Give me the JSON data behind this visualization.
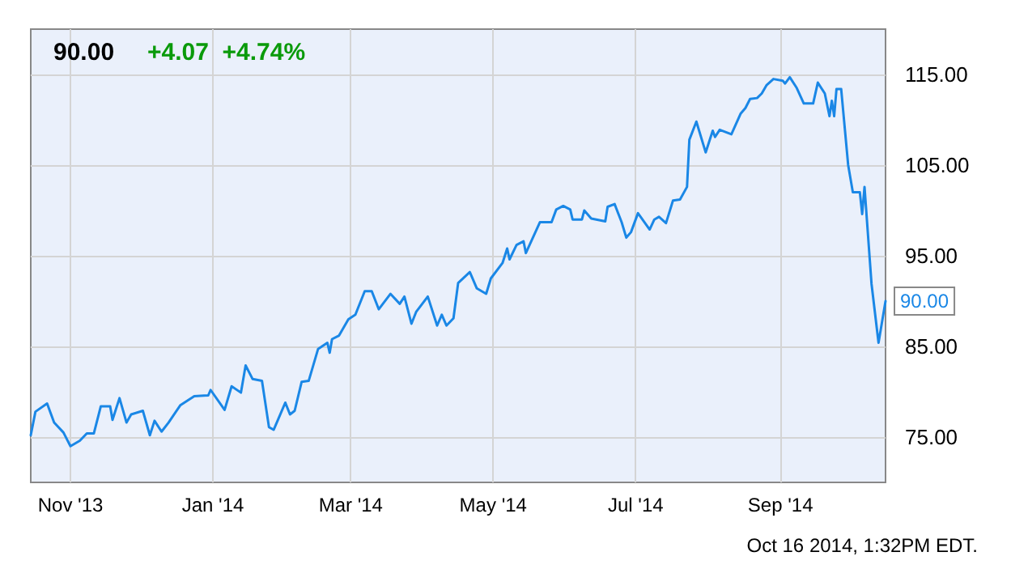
{
  "chart_data": {
    "type": "line",
    "title": "90.00",
    "subtitle": "+4.07  +4.74%",
    "annotations": [
      "Oct 16 2014, 1:32PM EDT."
    ],
    "x": [
      "2013-10-15",
      "2013-10-17",
      "2013-10-22",
      "2013-10-25",
      "2013-10-29",
      "2013-11-01",
      "2013-11-05",
      "2013-11-08",
      "2013-11-11",
      "2013-11-14",
      "2013-11-18",
      "2013-11-19",
      "2013-11-22",
      "2013-11-25",
      "2013-11-27",
      "2013-12-02",
      "2013-12-05",
      "2013-12-07",
      "2013-12-10",
      "2013-12-13",
      "2013-12-18",
      "2013-12-24",
      "2013-12-30",
      "2013-12-31",
      "2014-01-06",
      "2014-01-09",
      "2014-01-13",
      "2014-01-15",
      "2014-01-18",
      "2014-01-22",
      "2014-01-25",
      "2014-01-27",
      "2014-02-01",
      "2014-02-03",
      "2014-02-05",
      "2014-02-08",
      "2014-02-11",
      "2014-02-15",
      "2014-02-19",
      "2014-02-20",
      "2014-02-21",
      "2014-02-24",
      "2014-02-28",
      "2014-03-03",
      "2014-03-07",
      "2014-03-10",
      "2014-03-13",
      "2014-03-18",
      "2014-03-22",
      "2014-03-24",
      "2014-03-27",
      "2014-03-29",
      "2014-04-03",
      "2014-04-07",
      "2014-04-09",
      "2014-04-11",
      "2014-04-14",
      "2014-04-16",
      "2014-04-21",
      "2014-04-24",
      "2014-04-28",
      "2014-04-30",
      "2014-05-05",
      "2014-05-07",
      "2014-05-08",
      "2014-05-11",
      "2014-05-14",
      "2014-05-15",
      "2014-05-18",
      "2014-05-21",
      "2014-05-26",
      "2014-05-28",
      "2014-05-31",
      "2014-06-03",
      "2014-06-04",
      "2014-06-08",
      "2014-06-09",
      "2014-06-12",
      "2014-06-18",
      "2014-06-19",
      "2014-06-22",
      "2014-06-25",
      "2014-06-27",
      "2014-06-29",
      "2014-07-02",
      "2014-07-07",
      "2014-07-09",
      "2014-07-11",
      "2014-07-14",
      "2014-07-17",
      "2014-07-20",
      "2014-07-23",
      "2014-07-24",
      "2014-07-27",
      "2014-07-31",
      "2014-08-03",
      "2014-08-04",
      "2014-08-06",
      "2014-08-11",
      "2014-08-15",
      "2014-08-17",
      "2014-08-19",
      "2014-08-22",
      "2014-08-24",
      "2014-08-26",
      "2014-08-29",
      "2014-09-02",
      "2014-09-03",
      "2014-09-05",
      "2014-09-08",
      "2014-09-11",
      "2014-09-15",
      "2014-09-17",
      "2014-09-20",
      "2014-09-22",
      "2014-09-23",
      "2014-09-24",
      "2014-09-25",
      "2014-09-27",
      "2014-09-30",
      "2014-10-02",
      "2014-10-05",
      "2014-10-06",
      "2014-10-07",
      "2014-10-10",
      "2014-10-13",
      "2014-10-16"
    ],
    "series": [
      {
        "color": "#1a87e6",
        "values": [
          75.2,
          77.8,
          78.7,
          76.6,
          75.5,
          74.0,
          74.6,
          75.4,
          75.4,
          78.4,
          78.4,
          76.9,
          79.3,
          76.6,
          77.5,
          77.9,
          75.2,
          76.8,
          75.6,
          76.6,
          78.5,
          79.5,
          79.6,
          80.2,
          78.0,
          80.6,
          79.9,
          82.9,
          81.4,
          81.2,
          76.1,
          75.8,
          78.8,
          77.5,
          77.9,
          81.1,
          81.2,
          84.7,
          85.4,
          84.3,
          85.8,
          86.2,
          88.0,
          88.5,
          91.1,
          91.1,
          89.1,
          90.8,
          89.7,
          90.5,
          87.5,
          88.8,
          90.5,
          87.3,
          88.5,
          87.3,
          88.1,
          92.0,
          93.2,
          91.4,
          90.8,
          92.5,
          94.2,
          95.8,
          94.6,
          96.2,
          96.6,
          95.3,
          97.0,
          98.7,
          98.7,
          100.1,
          100.5,
          100.1,
          99.0,
          99.0,
          100.0,
          99.1,
          98.8,
          100.4,
          100.7,
          98.7,
          97.0,
          97.6,
          99.7,
          97.9,
          99.0,
          99.3,
          98.6,
          101.1,
          101.2,
          102.6,
          107.8,
          109.8,
          106.4,
          108.8,
          108.1,
          108.9,
          108.4,
          110.7,
          111.3,
          112.3,
          112.4,
          112.9,
          113.8,
          114.5,
          114.3,
          114.0,
          114.7,
          113.5,
          111.8,
          111.8,
          114.1,
          112.9,
          110.4,
          112.1,
          110.4,
          113.4,
          113.4,
          105.0,
          102.0,
          102.0,
          99.6,
          102.6,
          91.9,
          85.4,
          90.0
        ],
        "value_labels": [
          null,
          null,
          null,
          null,
          null,
          null,
          null,
          null,
          null,
          null,
          null,
          null,
          null,
          null,
          null,
          null,
          null,
          null,
          null,
          null,
          null,
          null,
          null,
          null,
          null,
          null,
          null,
          null,
          null,
          null,
          null,
          null,
          null,
          null,
          null,
          null,
          null,
          null,
          null,
          null,
          null,
          null,
          null,
          null,
          null,
          null,
          null,
          null,
          null,
          null,
          null,
          null,
          null,
          null,
          null,
          null,
          null,
          null,
          null,
          null,
          null,
          null,
          null,
          null,
          null,
          null,
          null,
          null,
          null,
          null,
          null,
          null,
          null,
          null,
          null,
          null,
          null,
          null,
          null,
          null,
          null,
          null,
          null,
          null,
          null,
          null,
          null,
          null,
          null,
          null,
          null,
          null,
          null,
          null,
          null,
          null,
          null,
          null,
          null,
          null,
          null,
          null,
          null,
          null,
          null,
          null,
          null,
          null,
          null,
          null,
          null,
          null,
          null,
          null,
          null,
          null,
          null,
          null,
          null,
          null,
          null,
          null,
          null,
          null,
          null,
          null,
          "90.00"
        ]
      }
    ],
    "xlim": [
      "2013-10-15",
      "2014-10-16"
    ],
    "xticks": [
      {
        "value": "2013-11-01",
        "label": "Nov '13"
      },
      {
        "value": "2014-01-01",
        "label": "Jan '14"
      },
      {
        "value": "2014-03-01",
        "label": "Mar '14"
      },
      {
        "value": "2014-05-01",
        "label": "May '14"
      },
      {
        "value": "2014-07-01",
        "label": "Jul '14"
      },
      {
        "value": "2014-09-01",
        "label": "Sep '14"
      }
    ],
    "ylim": [
      70,
      120
    ],
    "yticks": [
      {
        "value": 75,
        "label": "75.00"
      },
      {
        "value": 85,
        "label": "85.00"
      },
      {
        "value": 95,
        "label": "95.00"
      },
      {
        "value": 105,
        "label": "105.00"
      },
      {
        "value": 115,
        "label": "115.00"
      }
    ],
    "grid": true,
    "marker": "none",
    "line_style": "solid"
  }
}
